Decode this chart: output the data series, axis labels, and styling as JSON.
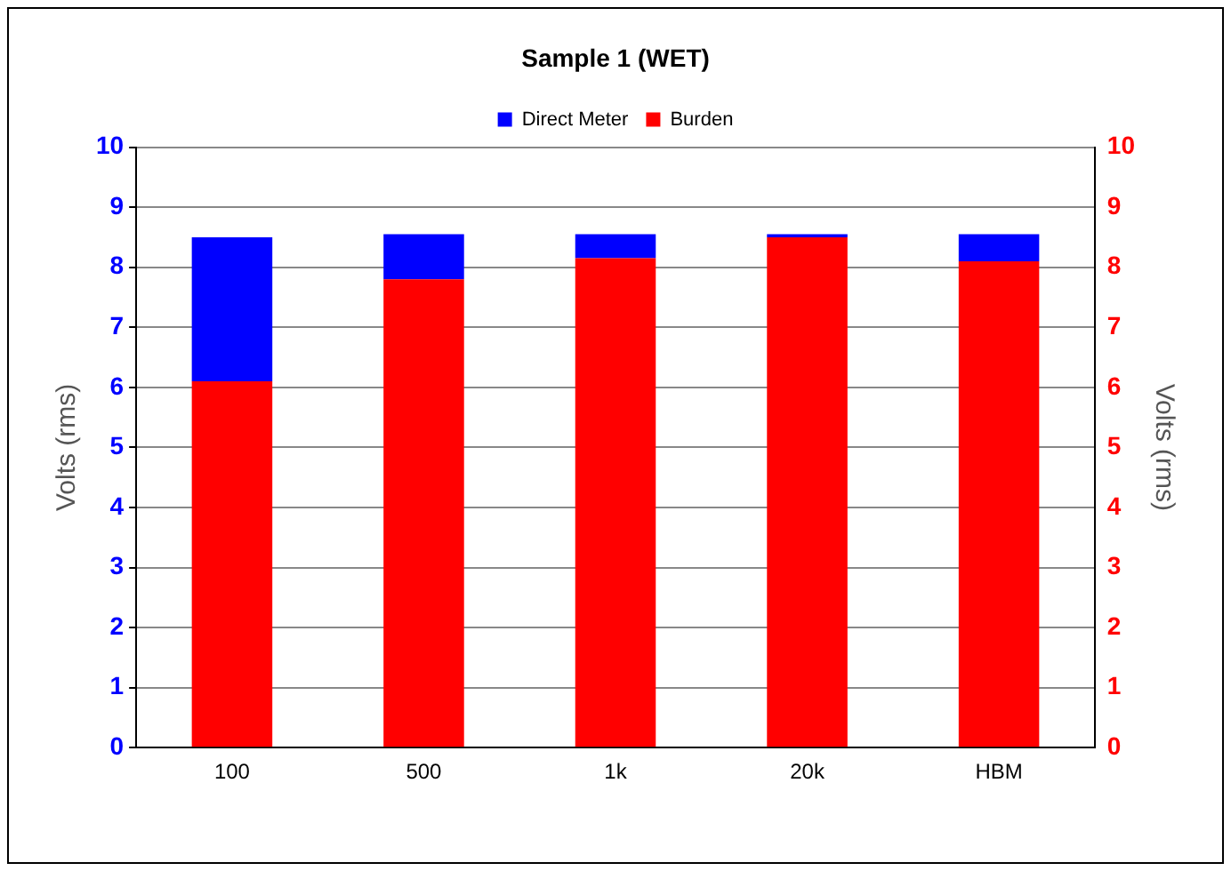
{
  "chart_data": {
    "type": "bar",
    "title": "Sample 1 (WET)",
    "categories": [
      "100",
      "500",
      "1k",
      "20k",
      "HBM"
    ],
    "stacked": true,
    "series": [
      {
        "name": "Burden",
        "color": "#ff0000",
        "values": [
          6.1,
          7.8,
          8.15,
          8.5,
          8.1
        ]
      },
      {
        "name": "Direct Meter",
        "color": "#0000ff",
        "values": [
          2.4,
          0.75,
          0.4,
          0.05,
          0.45
        ]
      }
    ],
    "ylabel": "Volts (rms)",
    "y2label": "Volts (rms)",
    "ylim": [
      0,
      10
    ],
    "yticks": [
      0,
      1,
      2,
      3,
      4,
      5,
      6,
      7,
      8,
      9,
      10
    ],
    "y2lim": [
      0,
      10
    ],
    "y2ticks": [
      0,
      1,
      2,
      3,
      4,
      5,
      6,
      7,
      8,
      9,
      10
    ],
    "grid": "y",
    "legend": "top"
  }
}
